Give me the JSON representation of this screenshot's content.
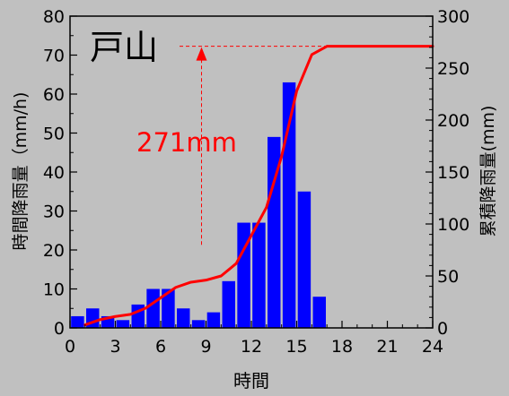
{
  "chart_data": {
    "type": "bar+line",
    "title": "戸山",
    "xlabel": "時間",
    "ylabel_left": "時間降雨量（mm/h)",
    "ylabel_right": "累積降雨量(mm)",
    "xlim": [
      0,
      24
    ],
    "ylim_left": [
      0,
      80
    ],
    "ylim_right": [
      0,
      300
    ],
    "x_ticks": [
      0,
      3,
      6,
      9,
      12,
      15,
      18,
      21,
      24
    ],
    "y_ticks_left": [
      0,
      10,
      20,
      30,
      40,
      50,
      60,
      70,
      80
    ],
    "y_ticks_right": [
      0,
      50,
      100,
      150,
      200,
      250,
      300
    ],
    "bars": {
      "color": "#0000ff",
      "hours": [
        1,
        2,
        3,
        4,
        5,
        6,
        7,
        8,
        9,
        10,
        11,
        12,
        13,
        14,
        15,
        16,
        17
      ],
      "values": [
        3,
        5,
        3,
        2,
        6,
        10,
        10,
        5,
        2,
        4,
        12,
        27,
        27,
        49,
        63,
        35,
        8
      ]
    },
    "cumulative": {
      "color": "#ff0000",
      "x": [
        1,
        2,
        3,
        4,
        5,
        6,
        7,
        8,
        9,
        10,
        11,
        12,
        13,
        14,
        15,
        16,
        17,
        24
      ],
      "y": [
        3,
        8,
        11,
        13,
        19,
        29,
        39,
        44,
        46,
        50,
        62,
        89,
        116,
        165,
        228,
        263,
        271,
        271
      ]
    },
    "annotation": {
      "text": "271mm",
      "color": "#ff0000",
      "value": 271,
      "arrow_x": 9,
      "arrow_from": 80,
      "arrow_to": 271
    }
  }
}
